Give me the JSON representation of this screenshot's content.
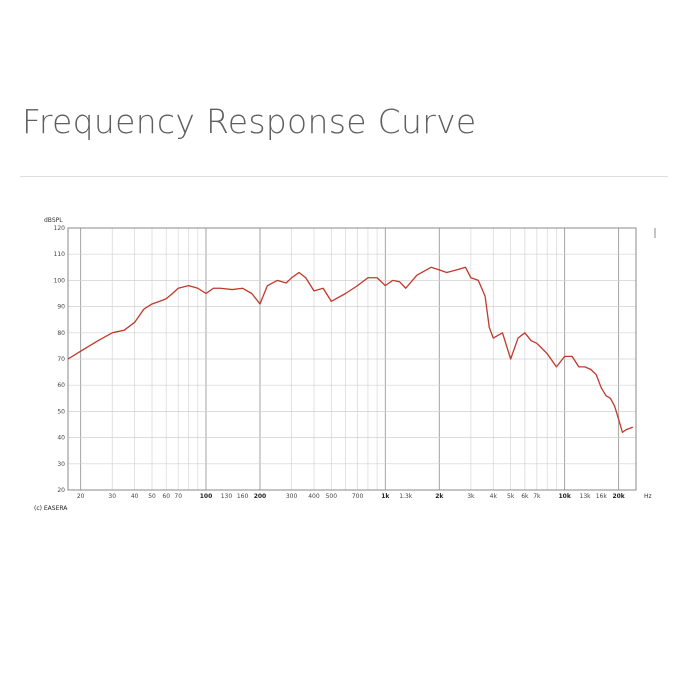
{
  "page": {
    "title": "Frequency Response Curve"
  },
  "chart_data": {
    "type": "line",
    "title": "",
    "xlabel": "Hz",
    "ylabel": "dBSPL",
    "credit": "(c) EASERA",
    "x_scale": "log",
    "xlim": [
      17,
      25000
    ],
    "ylim": [
      20,
      120
    ],
    "grid": true,
    "line_color": "#c0392b",
    "y_ticks": [
      20,
      30,
      40,
      50,
      60,
      70,
      80,
      90,
      100,
      110,
      120
    ],
    "x_ticks": [
      {
        "v": 20,
        "label": "20",
        "bold": false
      },
      {
        "v": 30,
        "label": "30",
        "bold": false
      },
      {
        "v": 40,
        "label": "40",
        "bold": false
      },
      {
        "v": 50,
        "label": "50",
        "bold": false
      },
      {
        "v": 60,
        "label": "60",
        "bold": false
      },
      {
        "v": 70,
        "label": "70",
        "bold": false
      },
      {
        "v": 100,
        "label": "100",
        "bold": true
      },
      {
        "v": 130,
        "label": "130",
        "bold": false
      },
      {
        "v": 160,
        "label": "160",
        "bold": false
      },
      {
        "v": 200,
        "label": "200",
        "bold": true
      },
      {
        "v": 300,
        "label": "300",
        "bold": false
      },
      {
        "v": 400,
        "label": "400",
        "bold": false
      },
      {
        "v": 500,
        "label": "500",
        "bold": false
      },
      {
        "v": 700,
        "label": "700",
        "bold": false
      },
      {
        "v": 1000,
        "label": "1k",
        "bold": true
      },
      {
        "v": 1300,
        "label": "1.3k",
        "bold": false
      },
      {
        "v": 2000,
        "label": "2k",
        "bold": true
      },
      {
        "v": 3000,
        "label": "3k",
        "bold": false
      },
      {
        "v": 4000,
        "label": "4k",
        "bold": false
      },
      {
        "v": 5000,
        "label": "5k",
        "bold": false
      },
      {
        "v": 6000,
        "label": "6k",
        "bold": false
      },
      {
        "v": 7000,
        "label": "7k",
        "bold": false
      },
      {
        "v": 10000,
        "label": "10k",
        "bold": true
      },
      {
        "v": 13000,
        "label": "13k",
        "bold": false
      },
      {
        "v": 16000,
        "label": "16k",
        "bold": false
      },
      {
        "v": 20000,
        "label": "20k",
        "bold": true
      }
    ],
    "series": [
      {
        "x": [
          17,
          20,
          25,
          30,
          35,
          40,
          45,
          50,
          55,
          60,
          65,
          70,
          80,
          90,
          100,
          110,
          120,
          140,
          160,
          180,
          200,
          220,
          250,
          280,
          300,
          330,
          360,
          400,
          450,
          500,
          600,
          700,
          800,
          900,
          1000,
          1100,
          1200,
          1300,
          1500,
          1800,
          2000,
          2200,
          2500,
          2800,
          3000,
          3300,
          3600,
          3800,
          4000,
          4500,
          5000,
          5500,
          6000,
          6500,
          7000,
          8000,
          9000,
          10000,
          11000,
          12000,
          13000,
          14000,
          15000,
          16000,
          17000,
          18000,
          19000,
          20000,
          21000,
          22000,
          24000
        ],
        "y": [
          70,
          73,
          77,
          80,
          81,
          84,
          89,
          91,
          92,
          93,
          95,
          97,
          98,
          97,
          95,
          97,
          97,
          96.5,
          97,
          95,
          91,
          98,
          100,
          99,
          101,
          103,
          101,
          96,
          97,
          92,
          95,
          98,
          101,
          101,
          98,
          100,
          99.5,
          97,
          102,
          105,
          104,
          103,
          104,
          105,
          101,
          100,
          94,
          82,
          78,
          80,
          70,
          78,
          80,
          77,
          76,
          72,
          67,
          71,
          71,
          67,
          67,
          66,
          64,
          59,
          56,
          55,
          52,
          47,
          42,
          43,
          44
        ]
      }
    ]
  }
}
